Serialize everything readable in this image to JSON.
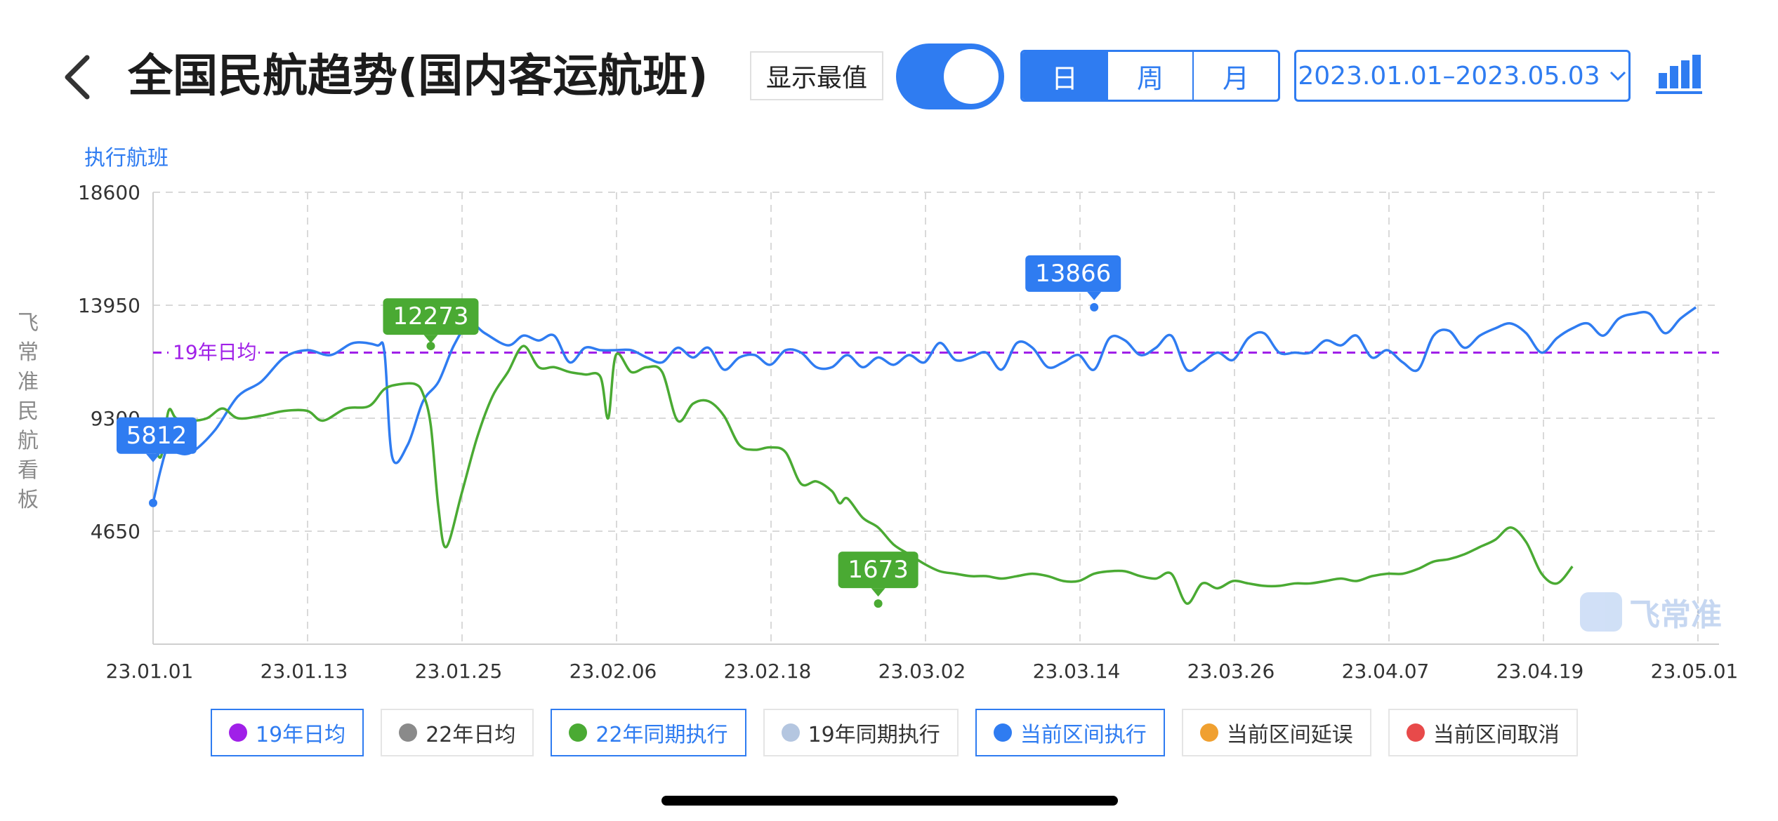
{
  "header": {
    "title": "全国民航趋势(国内客运航班)",
    "show_extreme_label": "显示最值",
    "toggle_on": true,
    "periods": [
      "日",
      "周",
      "月"
    ],
    "active_period": "日",
    "date_range": "2023.01.01–2023.05.03"
  },
  "side_label": "飞常准民航看板",
  "brand_text": "飞常准",
  "legend": [
    {
      "label": "19年日均",
      "color": "#a020e8",
      "active": true
    },
    {
      "label": "22年日均",
      "color": "#8a8a8a",
      "active": false
    },
    {
      "label": "22年同期执行",
      "color": "#4aaa33",
      "active": true
    },
    {
      "label": "19年同期执行",
      "color": "#b4c6e0",
      "active": false
    },
    {
      "label": "当前区间执行",
      "color": "#2f7cf1",
      "active": true
    },
    {
      "label": "当前区间延误",
      "color": "#f0a030",
      "active": false
    },
    {
      "label": "当前区间取消",
      "color": "#e84a4a",
      "active": false
    }
  ],
  "chart_data": {
    "type": "line",
    "ylabel": "执行航班",
    "ylim": [
      0,
      18600
    ],
    "yticks": [
      4650,
      9300,
      13950,
      18600
    ],
    "xticks": [
      "23.01.01",
      "23.01.13",
      "23.01.25",
      "23.02.06",
      "23.02.18",
      "23.03.02",
      "23.03.14",
      "23.03.26",
      "23.04.07",
      "23.04.19",
      "23.05.01"
    ],
    "x_days": 123,
    "reference_line": {
      "label": "19年日均",
      "value": 12000,
      "color": "#a020e8"
    },
    "series": [
      {
        "name": "当前区间执行",
        "color": "#2f7cf1",
        "max_label": "13866",
        "max_day": 122,
        "min_label": "5812",
        "min_day": 0,
        "points": [
          [
            0,
            5812
          ],
          [
            1,
            7200
          ],
          [
            2,
            8200
          ],
          [
            3,
            7900
          ],
          [
            5,
            7900
          ],
          [
            8,
            8800
          ],
          [
            11,
            10200
          ],
          [
            14,
            10800
          ],
          [
            17,
            11800
          ],
          [
            20,
            12100
          ],
          [
            23,
            11900
          ],
          [
            26,
            12400
          ],
          [
            29,
            12300
          ],
          [
            30,
            12000
          ],
          [
            31,
            7700
          ],
          [
            33,
            8200
          ],
          [
            35,
            10000
          ],
          [
            37,
            10800
          ],
          [
            39,
            12300
          ],
          [
            41,
            13200
          ],
          [
            43,
            12800
          ],
          [
            46,
            12300
          ],
          [
            48,
            12700
          ],
          [
            50,
            12500
          ],
          [
            52,
            12700
          ],
          [
            54,
            11600
          ],
          [
            56,
            12200
          ],
          [
            58,
            12100
          ],
          [
            60,
            12100
          ],
          [
            62,
            12100
          ],
          [
            64,
            11800
          ],
          [
            66,
            11600
          ],
          [
            68,
            12200
          ],
          [
            70,
            11800
          ],
          [
            72,
            12200
          ],
          [
            74,
            11300
          ],
          [
            76,
            11800
          ],
          [
            78,
            11900
          ],
          [
            80,
            11500
          ],
          [
            82,
            12100
          ],
          [
            84,
            12000
          ],
          [
            86,
            11400
          ],
          [
            88,
            11400
          ],
          [
            90,
            11900
          ],
          [
            92,
            11400
          ],
          [
            94,
            11800
          ],
          [
            96,
            11500
          ],
          [
            98,
            11900
          ],
          [
            100,
            11600
          ],
          [
            102,
            12400
          ],
          [
            104,
            11700
          ],
          [
            106,
            11800
          ],
          [
            108,
            12000
          ],
          [
            110,
            11300
          ],
          [
            112,
            12400
          ],
          [
            114,
            12200
          ],
          [
            116,
            11400
          ],
          [
            118,
            11600
          ],
          [
            120,
            11900
          ],
          [
            122,
            11300
          ],
          [
            124,
            12600
          ],
          [
            126,
            12500
          ],
          [
            128,
            11900
          ],
          [
            130,
            12200
          ],
          [
            132,
            12700
          ],
          [
            134,
            11300
          ],
          [
            136,
            11600
          ],
          [
            138,
            12000
          ],
          [
            140,
            11700
          ],
          [
            142,
            12600
          ],
          [
            144,
            12800
          ],
          [
            146,
            12000
          ],
          [
            148,
            12000
          ],
          [
            150,
            12000
          ],
          [
            152,
            12500
          ],
          [
            154,
            12300
          ],
          [
            156,
            12700
          ],
          [
            158,
            11800
          ],
          [
            160,
            12100
          ],
          [
            162,
            11600
          ],
          [
            164,
            11300
          ],
          [
            166,
            12700
          ],
          [
            168,
            12900
          ],
          [
            170,
            12200
          ],
          [
            172,
            12700
          ],
          [
            174,
            13000
          ],
          [
            176,
            13200
          ],
          [
            178,
            12800
          ],
          [
            180,
            12000
          ],
          [
            182,
            12600
          ],
          [
            184,
            13000
          ],
          [
            186,
            13200
          ],
          [
            188,
            12700
          ],
          [
            190,
            13400
          ],
          [
            192,
            13600
          ],
          [
            194,
            13600
          ],
          [
            196,
            12800
          ],
          [
            198,
            13400
          ],
          [
            200,
            13866
          ]
        ]
      },
      {
        "name": "22年同期执行",
        "color": "#4aaa33",
        "max_label": "12273",
        "max_day": 36,
        "min_label": "1673",
        "min_day": 94,
        "points": [
          [
            0,
            8500
          ],
          [
            1,
            7700
          ],
          [
            2,
            9600
          ],
          [
            3,
            9300
          ],
          [
            5,
            9200
          ],
          [
            7,
            9300
          ],
          [
            9,
            9700
          ],
          [
            11,
            9300
          ],
          [
            14,
            9400
          ],
          [
            17,
            9600
          ],
          [
            20,
            9600
          ],
          [
            22,
            9200
          ],
          [
            25,
            9700
          ],
          [
            28,
            9800
          ],
          [
            30,
            10500
          ],
          [
            32,
            10700
          ],
          [
            34,
            10700
          ],
          [
            35,
            10300
          ],
          [
            36,
            9000
          ],
          [
            37,
            5600
          ],
          [
            38,
            4000
          ],
          [
            40,
            6200
          ],
          [
            42,
            8500
          ],
          [
            44,
            10200
          ],
          [
            46,
            11200
          ],
          [
            48,
            12273
          ],
          [
            50,
            11400
          ],
          [
            52,
            11400
          ],
          [
            54,
            11200
          ],
          [
            56,
            11100
          ],
          [
            58,
            11000
          ],
          [
            59,
            9300
          ],
          [
            60,
            11900
          ],
          [
            62,
            11200
          ],
          [
            64,
            11400
          ],
          [
            66,
            11200
          ],
          [
            68,
            9200
          ],
          [
            70,
            9900
          ],
          [
            72,
            10000
          ],
          [
            74,
            9400
          ],
          [
            76,
            8200
          ],
          [
            78,
            8000
          ],
          [
            80,
            8100
          ],
          [
            82,
            7900
          ],
          [
            84,
            6600
          ],
          [
            86,
            6700
          ],
          [
            88,
            6300
          ],
          [
            89,
            5800
          ],
          [
            90,
            6000
          ],
          [
            92,
            5200
          ],
          [
            94,
            4800
          ],
          [
            96,
            4100
          ],
          [
            98,
            3700
          ],
          [
            100,
            3300
          ],
          [
            102,
            3000
          ],
          [
            104,
            2900
          ],
          [
            106,
            2800
          ],
          [
            108,
            2800
          ],
          [
            110,
            2700
          ],
          [
            112,
            2800
          ],
          [
            114,
            2900
          ],
          [
            116,
            2800
          ],
          [
            118,
            2600
          ],
          [
            120,
            2600
          ],
          [
            122,
            2900
          ],
          [
            124,
            3000
          ],
          [
            126,
            3000
          ],
          [
            128,
            2800
          ],
          [
            130,
            2700
          ],
          [
            132,
            2900
          ],
          [
            134,
            1673
          ],
          [
            136,
            2500
          ],
          [
            138,
            2300
          ],
          [
            140,
            2600
          ],
          [
            142,
            2500
          ],
          [
            144,
            2400
          ],
          [
            146,
            2400
          ],
          [
            148,
            2500
          ],
          [
            150,
            2500
          ],
          [
            152,
            2600
          ],
          [
            154,
            2700
          ],
          [
            156,
            2600
          ],
          [
            158,
            2800
          ],
          [
            160,
            2900
          ],
          [
            162,
            2900
          ],
          [
            164,
            3100
          ],
          [
            166,
            3400
          ],
          [
            168,
            3500
          ],
          [
            170,
            3700
          ],
          [
            172,
            4000
          ],
          [
            174,
            4300
          ],
          [
            176,
            4800
          ],
          [
            178,
            4200
          ],
          [
            180,
            2900
          ],
          [
            182,
            2500
          ],
          [
            184,
            3200
          ]
        ]
      }
    ]
  }
}
